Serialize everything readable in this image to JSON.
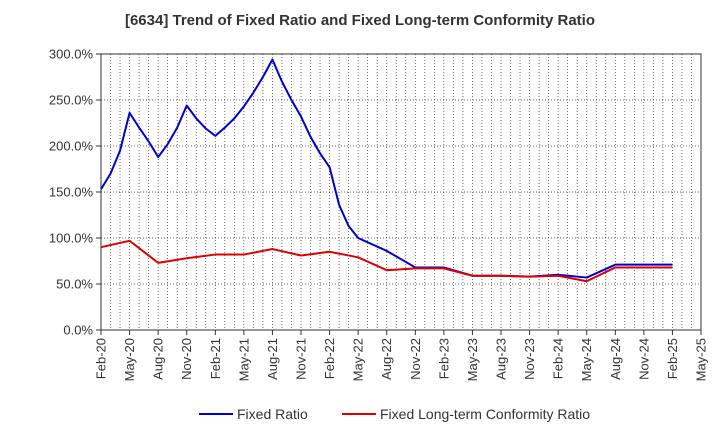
{
  "chart_data": {
    "type": "line",
    "title": "[6634]  Trend of Fixed Ratio and Fixed Long-term Conformity Ratio",
    "xlabel": "",
    "ylabel": "",
    "ylim": [
      0,
      300
    ],
    "y_ticks": [
      "0.0%",
      "50.0%",
      "100.0%",
      "150.0%",
      "200.0%",
      "250.0%",
      "300.0%"
    ],
    "x_ticks": [
      "Feb-20",
      "May-20",
      "Aug-20",
      "Nov-20",
      "Feb-21",
      "May-21",
      "Aug-21",
      "Nov-21",
      "Feb-22",
      "May-22",
      "Aug-22",
      "Nov-22",
      "Feb-23",
      "May-23",
      "Aug-23",
      "Nov-23",
      "Feb-24",
      "May-24",
      "Aug-24",
      "Nov-24",
      "Feb-25",
      "May-25"
    ],
    "grid": true,
    "legend_position": "bottom",
    "series": [
      {
        "name": "Fixed Ratio",
        "color": "#0000cc",
        "points": [
          [
            "Feb-20",
            153
          ],
          [
            "Mar-20",
            170
          ],
          [
            "Apr-20",
            195
          ],
          [
            "May-20",
            236
          ],
          [
            "Jun-20",
            220
          ],
          [
            "Jul-20",
            205
          ],
          [
            "Aug-20",
            188
          ],
          [
            "Sep-20",
            202
          ],
          [
            "Oct-20",
            220
          ],
          [
            "Nov-20",
            244
          ],
          [
            "Dec-20",
            230
          ],
          [
            "Jan-21",
            219
          ],
          [
            "Feb-21",
            211
          ],
          [
            "Mar-21",
            220
          ],
          [
            "Apr-21",
            230
          ],
          [
            "May-21",
            243
          ],
          [
            "Jun-21",
            258
          ],
          [
            "Jul-21",
            275
          ],
          [
            "Aug-21",
            294
          ],
          [
            "Sep-21",
            270
          ],
          [
            "Oct-21",
            250
          ],
          [
            "Nov-21",
            232
          ],
          [
            "Dec-21",
            210
          ],
          [
            "Jan-22",
            192
          ],
          [
            "Feb-22",
            177
          ],
          [
            "Mar-22",
            136
          ],
          [
            "Apr-22",
            113
          ],
          [
            "May-22",
            100
          ],
          [
            "Aug-22",
            86
          ],
          [
            "Nov-22",
            68
          ],
          [
            "Feb-23",
            68
          ],
          [
            "May-23",
            59
          ],
          [
            "Aug-23",
            59
          ],
          [
            "Nov-23",
            58
          ],
          [
            "Feb-24",
            60
          ],
          [
            "May-24",
            57
          ],
          [
            "Aug-24",
            71
          ],
          [
            "Nov-24",
            71
          ],
          [
            "Feb-25",
            71
          ]
        ]
      },
      {
        "name": "Fixed Long-term Conformity Ratio",
        "color": "#dd0000",
        "points": [
          [
            "Feb-20",
            90
          ],
          [
            "May-20",
            97
          ],
          [
            "Aug-20",
            73
          ],
          [
            "Nov-20",
            78
          ],
          [
            "Feb-21",
            82
          ],
          [
            "May-21",
            82
          ],
          [
            "Aug-21",
            88
          ],
          [
            "Nov-21",
            81
          ],
          [
            "Feb-22",
            85
          ],
          [
            "May-22",
            79
          ],
          [
            "Aug-22",
            65
          ],
          [
            "Nov-22",
            67
          ],
          [
            "Feb-23",
            67
          ],
          [
            "May-23",
            59
          ],
          [
            "Aug-23",
            59
          ],
          [
            "Nov-23",
            58
          ],
          [
            "Feb-24",
            59
          ],
          [
            "May-24",
            53
          ],
          [
            "Aug-24",
            68
          ],
          [
            "Nov-24",
            68
          ],
          [
            "Feb-25",
            68
          ]
        ]
      }
    ]
  }
}
